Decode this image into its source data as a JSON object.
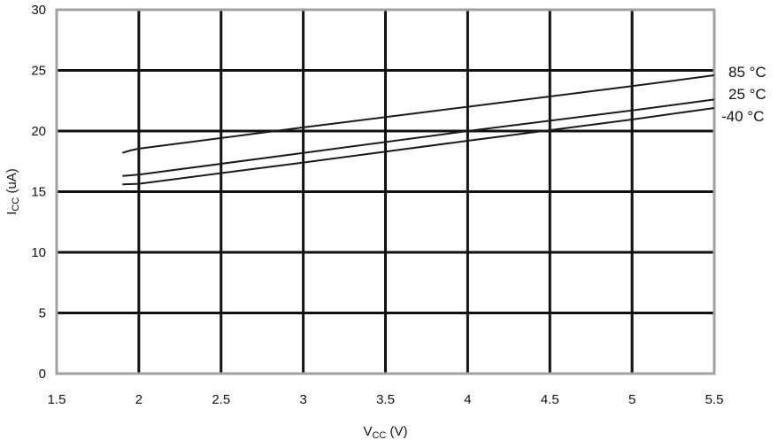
{
  "chart_data": {
    "type": "line",
    "title": "",
    "xlabel": "V",
    "xlabel_sub": "CC",
    "xlabel_unit": " (V)",
    "ylabel": "I",
    "ylabel_sub": "CC",
    "ylabel_unit": " (uA)",
    "xlim": [
      1.5,
      5.5
    ],
    "ylim": [
      0,
      30
    ],
    "x_ticks": [
      1.5,
      2,
      2.5,
      3,
      3.5,
      4,
      4.5,
      5,
      5.5
    ],
    "x_tick_labels": [
      "1.5",
      "2",
      "2.5",
      "3",
      "3.5",
      "4",
      "4.5",
      "5",
      "5.5"
    ],
    "y_ticks": [
      0,
      5,
      10,
      15,
      20,
      25,
      30
    ],
    "y_tick_labels": [
      "0",
      "5",
      "10",
      "15",
      "20",
      "25",
      "30"
    ],
    "grid": true,
    "colors": {
      "line": "#1a1a1a",
      "grid": "#111111",
      "frame": "#a0a0a0",
      "background": "#ffffff"
    },
    "series": [
      {
        "name": "85 °C",
        "x": [
          1.9,
          1.95,
          2.0,
          3.0,
          4.0,
          5.0,
          5.5
        ],
        "y": [
          18.2,
          18.4,
          18.55,
          20.3,
          22.0,
          23.7,
          24.6
        ]
      },
      {
        "name": "25 °C",
        "x": [
          1.9,
          2.0,
          3.0,
          4.0,
          5.0,
          5.5
        ],
        "y": [
          16.3,
          16.4,
          18.2,
          20.0,
          21.7,
          22.6
        ]
      },
      {
        "name": "-40 °C",
        "x": [
          1.9,
          2.0,
          3.0,
          4.0,
          5.0,
          5.5
        ],
        "y": [
          15.6,
          15.65,
          17.4,
          19.2,
          20.95,
          21.9
        ]
      }
    ]
  }
}
